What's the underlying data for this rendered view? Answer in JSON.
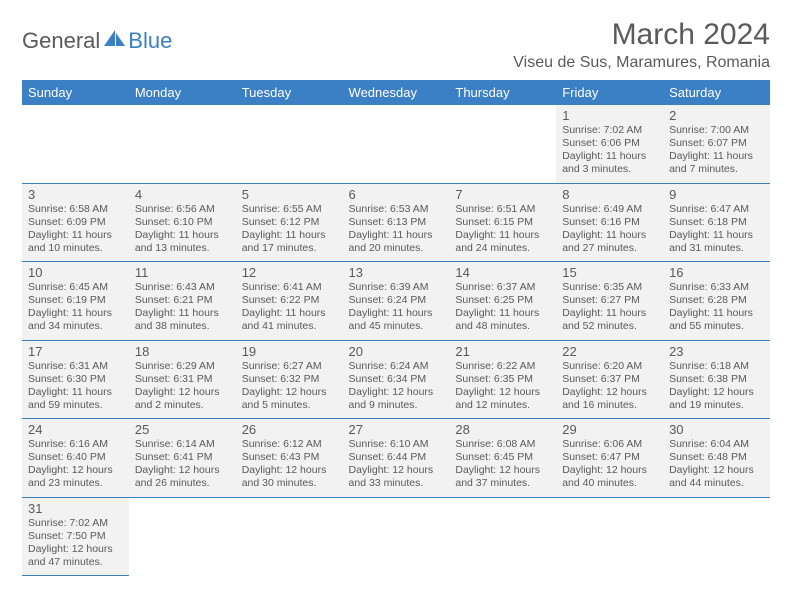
{
  "logo": {
    "text1": "General",
    "text2": "Blue"
  },
  "title": "March 2024",
  "location": "Viseu de Sus, Maramures, Romania",
  "colors": {
    "header_bg": "#3b7fc4",
    "header_text": "#ffffff",
    "cell_bg": "#f2f2f2",
    "text": "#5a5a5a",
    "border": "#3b7fc4",
    "page_bg": "#ffffff"
  },
  "typography": {
    "title_fontsize": 30,
    "location_fontsize": 16,
    "weekday_fontsize": 13,
    "daynum_fontsize": 13,
    "info_fontsize": 10.5
  },
  "weekdays": [
    "Sunday",
    "Monday",
    "Tuesday",
    "Wednesday",
    "Thursday",
    "Friday",
    "Saturday"
  ],
  "weeks": [
    [
      null,
      null,
      null,
      null,
      null,
      {
        "day": "1",
        "sunrise": "7:02 AM",
        "sunset": "6:06 PM",
        "daylight": "11 hours and 3 minutes."
      },
      {
        "day": "2",
        "sunrise": "7:00 AM",
        "sunset": "6:07 PM",
        "daylight": "11 hours and 7 minutes."
      }
    ],
    [
      {
        "day": "3",
        "sunrise": "6:58 AM",
        "sunset": "6:09 PM",
        "daylight": "11 hours and 10 minutes."
      },
      {
        "day": "4",
        "sunrise": "6:56 AM",
        "sunset": "6:10 PM",
        "daylight": "11 hours and 13 minutes."
      },
      {
        "day": "5",
        "sunrise": "6:55 AM",
        "sunset": "6:12 PM",
        "daylight": "11 hours and 17 minutes."
      },
      {
        "day": "6",
        "sunrise": "6:53 AM",
        "sunset": "6:13 PM",
        "daylight": "11 hours and 20 minutes."
      },
      {
        "day": "7",
        "sunrise": "6:51 AM",
        "sunset": "6:15 PM",
        "daylight": "11 hours and 24 minutes."
      },
      {
        "day": "8",
        "sunrise": "6:49 AM",
        "sunset": "6:16 PM",
        "daylight": "11 hours and 27 minutes."
      },
      {
        "day": "9",
        "sunrise": "6:47 AM",
        "sunset": "6:18 PM",
        "daylight": "11 hours and 31 minutes."
      }
    ],
    [
      {
        "day": "10",
        "sunrise": "6:45 AM",
        "sunset": "6:19 PM",
        "daylight": "11 hours and 34 minutes."
      },
      {
        "day": "11",
        "sunrise": "6:43 AM",
        "sunset": "6:21 PM",
        "daylight": "11 hours and 38 minutes."
      },
      {
        "day": "12",
        "sunrise": "6:41 AM",
        "sunset": "6:22 PM",
        "daylight": "11 hours and 41 minutes."
      },
      {
        "day": "13",
        "sunrise": "6:39 AM",
        "sunset": "6:24 PM",
        "daylight": "11 hours and 45 minutes."
      },
      {
        "day": "14",
        "sunrise": "6:37 AM",
        "sunset": "6:25 PM",
        "daylight": "11 hours and 48 minutes."
      },
      {
        "day": "15",
        "sunrise": "6:35 AM",
        "sunset": "6:27 PM",
        "daylight": "11 hours and 52 minutes."
      },
      {
        "day": "16",
        "sunrise": "6:33 AM",
        "sunset": "6:28 PM",
        "daylight": "11 hours and 55 minutes."
      }
    ],
    [
      {
        "day": "17",
        "sunrise": "6:31 AM",
        "sunset": "6:30 PM",
        "daylight": "11 hours and 59 minutes."
      },
      {
        "day": "18",
        "sunrise": "6:29 AM",
        "sunset": "6:31 PM",
        "daylight": "12 hours and 2 minutes."
      },
      {
        "day": "19",
        "sunrise": "6:27 AM",
        "sunset": "6:32 PM",
        "daylight": "12 hours and 5 minutes."
      },
      {
        "day": "20",
        "sunrise": "6:24 AM",
        "sunset": "6:34 PM",
        "daylight": "12 hours and 9 minutes."
      },
      {
        "day": "21",
        "sunrise": "6:22 AM",
        "sunset": "6:35 PM",
        "daylight": "12 hours and 12 minutes."
      },
      {
        "day": "22",
        "sunrise": "6:20 AM",
        "sunset": "6:37 PM",
        "daylight": "12 hours and 16 minutes."
      },
      {
        "day": "23",
        "sunrise": "6:18 AM",
        "sunset": "6:38 PM",
        "daylight": "12 hours and 19 minutes."
      }
    ],
    [
      {
        "day": "24",
        "sunrise": "6:16 AM",
        "sunset": "6:40 PM",
        "daylight": "12 hours and 23 minutes."
      },
      {
        "day": "25",
        "sunrise": "6:14 AM",
        "sunset": "6:41 PM",
        "daylight": "12 hours and 26 minutes."
      },
      {
        "day": "26",
        "sunrise": "6:12 AM",
        "sunset": "6:43 PM",
        "daylight": "12 hours and 30 minutes."
      },
      {
        "day": "27",
        "sunrise": "6:10 AM",
        "sunset": "6:44 PM",
        "daylight": "12 hours and 33 minutes."
      },
      {
        "day": "28",
        "sunrise": "6:08 AM",
        "sunset": "6:45 PM",
        "daylight": "12 hours and 37 minutes."
      },
      {
        "day": "29",
        "sunrise": "6:06 AM",
        "sunset": "6:47 PM",
        "daylight": "12 hours and 40 minutes."
      },
      {
        "day": "30",
        "sunrise": "6:04 AM",
        "sunset": "6:48 PM",
        "daylight": "12 hours and 44 minutes."
      }
    ],
    [
      {
        "day": "31",
        "sunrise": "7:02 AM",
        "sunset": "7:50 PM",
        "daylight": "12 hours and 47 minutes."
      },
      null,
      null,
      null,
      null,
      null,
      null
    ]
  ],
  "labels": {
    "sunrise_prefix": "Sunrise: ",
    "sunset_prefix": "Sunset: ",
    "daylight_prefix": "Daylight: "
  }
}
